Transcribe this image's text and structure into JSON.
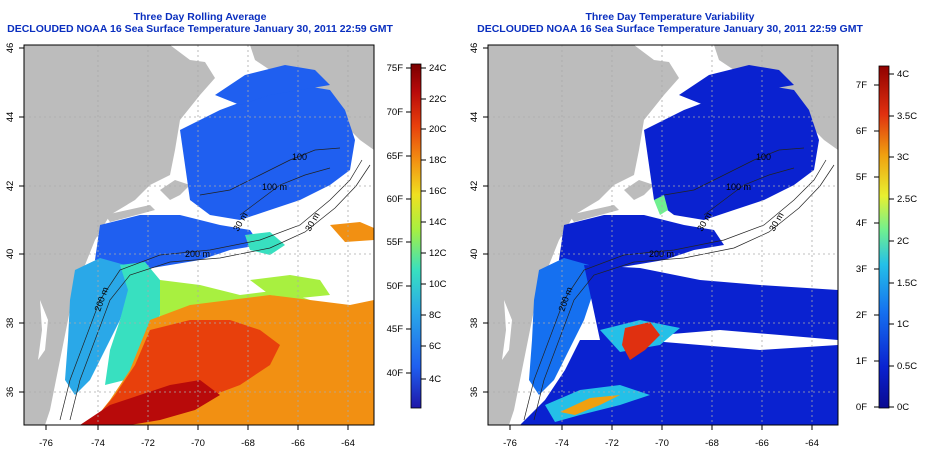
{
  "panels": [
    {
      "title_line1": "Three Day Rolling Average",
      "title_line2": "DECLOUDED NOAA 16 Sea Surface Temperature January 30, 2011 22:59 GMT",
      "x_ticks": [
        "-76",
        "-74",
        "-72",
        "-70",
        "-68",
        "-66",
        "-64"
      ],
      "y_ticks": [
        "46",
        "44",
        "42",
        "40",
        "38",
        "36"
      ],
      "contour_labels": [
        "100 m",
        "200 m",
        "200 m",
        "30 m",
        "30 m",
        "100"
      ],
      "colorbar_left": [
        "75F",
        "70F",
        "65F",
        "60F",
        "55F",
        "50F",
        "45F",
        "40F"
      ],
      "colorbar_right": [
        "24C",
        "22C",
        "20C",
        "18C",
        "16C",
        "14C",
        "12C",
        "10C",
        "8C",
        "6C",
        "4C"
      ]
    },
    {
      "title_line1": "Three Day Temperature Variability",
      "title_line2": "DECLOUDED NOAA 16 Sea Surface Temperature January 30, 2011 22:59 GMT",
      "x_ticks": [
        "-76",
        "-74",
        "-72",
        "-70",
        "-68",
        "-66",
        "-64"
      ],
      "y_ticks": [
        "46",
        "44",
        "42",
        "40",
        "38",
        "36"
      ],
      "contour_labels": [
        "100 m",
        "200 m",
        "200 m",
        "30 m",
        "30 m",
        "100"
      ],
      "colorbar_left": [
        "7F",
        "6F",
        "5F",
        "4F",
        "3F",
        "2F",
        "1F",
        "0F"
      ],
      "colorbar_right": [
        "4C",
        "3.5C",
        "3C",
        "2.5C",
        "2C",
        "1.5C",
        "1C",
        "0.5C",
        "0C"
      ]
    }
  ],
  "colors": {
    "title": "#0a2fbf",
    "land": "#bcbcbc",
    "no_data": "#ffffff",
    "sst_scale": [
      "#1f17a8",
      "#1f5ff0",
      "#2aa8e8",
      "#38e0c0",
      "#a8f040",
      "#f0e020",
      "#f29012",
      "#e8400c",
      "#b80a0a",
      "#7a0000"
    ],
    "var_scale": [
      "#0a0a90",
      "#0a22d0",
      "#1570f0",
      "#24c0e8",
      "#70f090",
      "#e8f030",
      "#f0a010",
      "#e03010",
      "#900000"
    ]
  }
}
